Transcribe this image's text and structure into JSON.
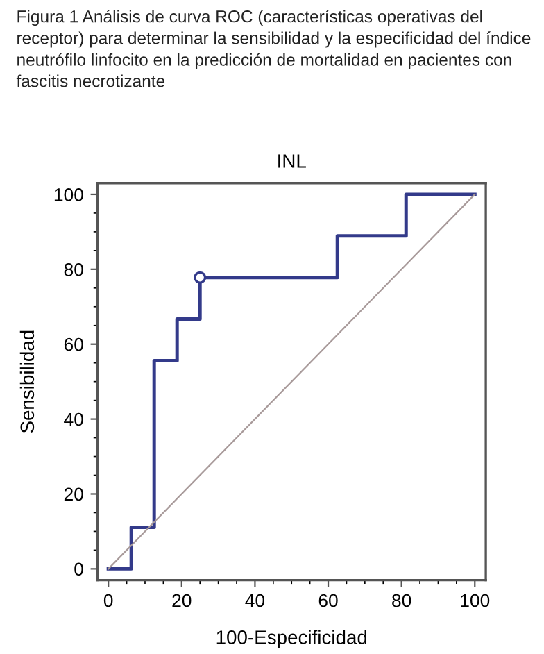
{
  "chart_data": {
    "type": "step",
    "title": "INL",
    "xlabel": "100-Especificidad",
    "ylabel": "Sensibilidad",
    "annotations": [
      "Figura 1 Análisis de curva ROC (características operativas del receptor) para determinar la sensibilidad y la especificidad del índice neutrófilo linfocito en la predicción de mortalidad en pacientes con fascitis necrotizante"
    ],
    "series": [
      {
        "color": "#333a8a",
        "x": [
          0,
          6.25,
          12.5,
          18.75,
          25,
          62.5,
          81.25,
          100
        ],
        "values": [
          0,
          11.1,
          55.6,
          66.7,
          77.8,
          88.9,
          100,
          100
        ]
      },
      {
        "type": "line",
        "color": "#a89a9a",
        "x": [
          0,
          100
        ],
        "values": [
          0,
          100
        ]
      },
      {
        "type": "scatter",
        "color": "#333a8a",
        "marker": "circle",
        "x": [
          25
        ],
        "values": [
          77.8
        ]
      }
    ],
    "xlim": [
      -3,
      103
    ],
    "ylim": [
      -3,
      103
    ],
    "xticks": [
      0,
      20,
      40,
      60,
      80,
      100
    ],
    "yticks": [
      0,
      20,
      40,
      60,
      80,
      100
    ],
    "grid": false,
    "legend": false
  }
}
